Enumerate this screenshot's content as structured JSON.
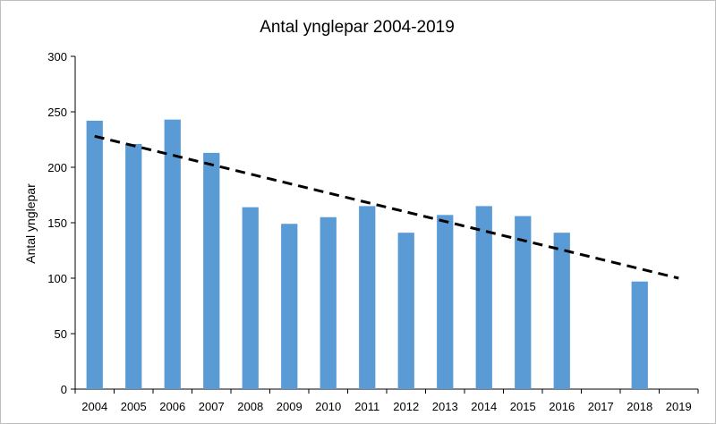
{
  "chart_data": {
    "type": "bar",
    "title": "Antal ynglepar 2004-2019",
    "xlabel": "",
    "ylabel": "Antal ynglepar",
    "ylim": [
      0,
      300
    ],
    "yticks": [
      0,
      50,
      100,
      150,
      200,
      250,
      300
    ],
    "categories": [
      "2004",
      "2005",
      "2006",
      "2007",
      "2008",
      "2009",
      "2010",
      "2011",
      "2012",
      "2013",
      "2014",
      "2015",
      "2016",
      "2017",
      "2018",
      "2019"
    ],
    "values": [
      242,
      221,
      243,
      213,
      164,
      149,
      155,
      165,
      141,
      157,
      165,
      156,
      141,
      null,
      97,
      null
    ],
    "trendline": {
      "style": "dashed",
      "color": "#000000",
      "start": {
        "category": "2004",
        "value": 228
      },
      "end": {
        "category": "2019",
        "value": 100
      }
    },
    "series_color": "#5b9bd5",
    "legend": "none",
    "grid": false
  }
}
